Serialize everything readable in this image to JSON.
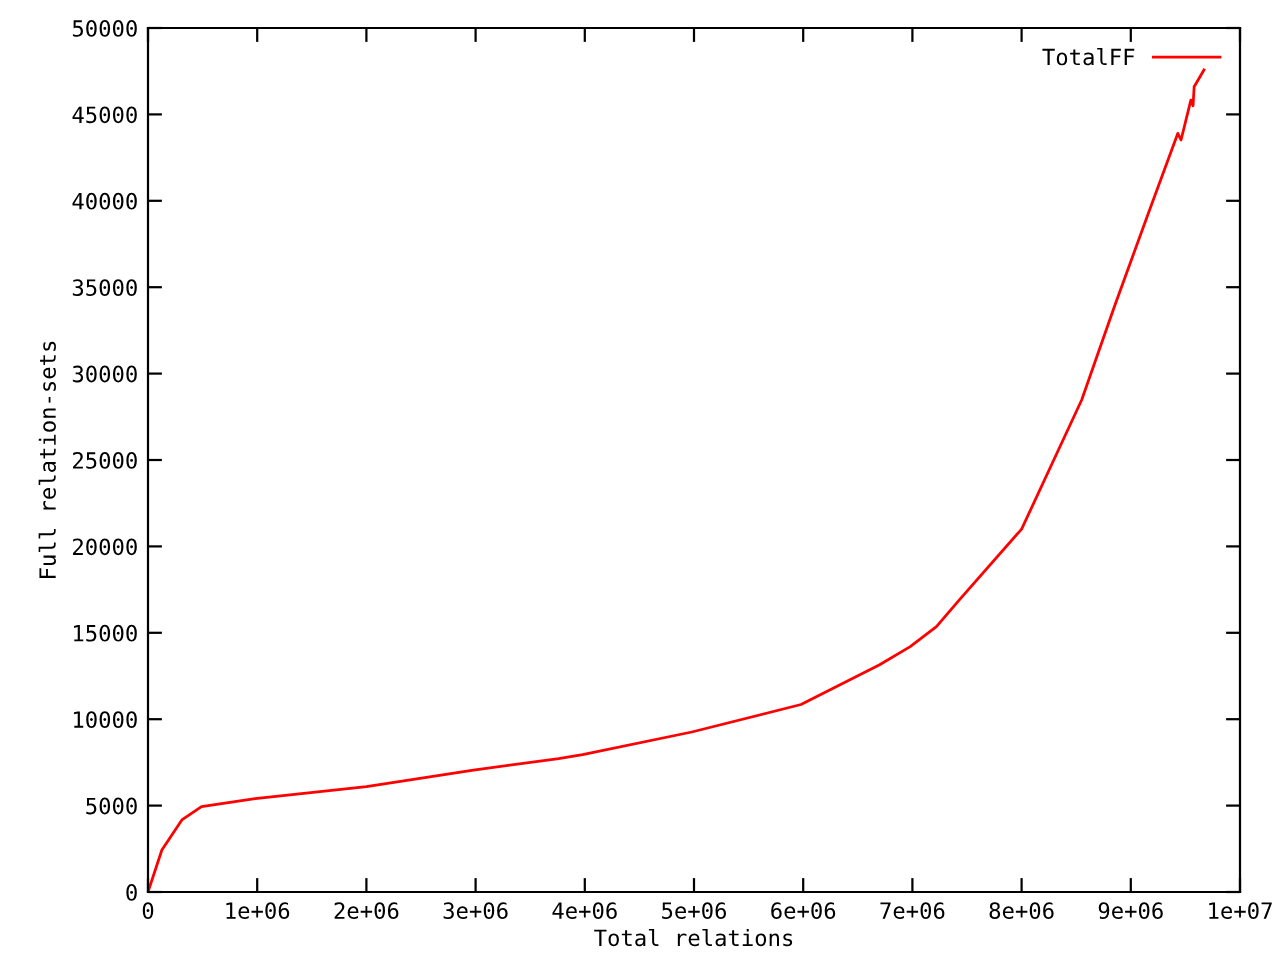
{
  "chart_data": {
    "type": "line",
    "xlabel": "Total relations",
    "ylabel": "Full relation-sets",
    "x": [
      0,
      127000,
      310000,
      490000,
      980000,
      2000000,
      2980000,
      3760000,
      3980000,
      4980000,
      5980000,
      6700000,
      6980000,
      7220000,
      7430000,
      8000000,
      8550000,
      8850000,
      9160000,
      9430000,
      9460000,
      9550000,
      9570000,
      9580000,
      9670000
    ],
    "series": [
      {
        "name": "TotalFF",
        "color": "#ff0000",
        "values": [
          0,
          2430,
          4170,
          4940,
          5400,
          6100,
          7060,
          7720,
          7950,
          9260,
          10850,
          13150,
          14200,
          15360,
          16900,
          21000,
          28470,
          33880,
          39270,
          43900,
          43520,
          45830,
          45500,
          46600,
          47570
        ]
      }
    ],
    "xlim": [
      0,
      10000000
    ],
    "ylim": [
      0,
      50000
    ],
    "xticks": [
      0,
      {
        "value": 1000000,
        "label": "1e+06"
      },
      {
        "value": 2000000,
        "label": "2e+06"
      },
      {
        "value": 3000000,
        "label": "3e+06"
      },
      {
        "value": 4000000,
        "label": "4e+06"
      },
      {
        "value": 5000000,
        "label": "5e+06"
      },
      {
        "value": 6000000,
        "label": "6e+06"
      },
      {
        "value": 7000000,
        "label": "7e+06"
      },
      {
        "value": 8000000,
        "label": "8e+06"
      },
      {
        "value": 9000000,
        "label": "9e+06"
      },
      {
        "value": 10000000,
        "label": "1e+07"
      }
    ],
    "yticks": [
      0,
      5000,
      10000,
      15000,
      20000,
      25000,
      30000,
      35000,
      40000,
      45000,
      50000
    ],
    "legend": "top right",
    "grid": false,
    "marker": "none",
    "line_style": "solid"
  }
}
